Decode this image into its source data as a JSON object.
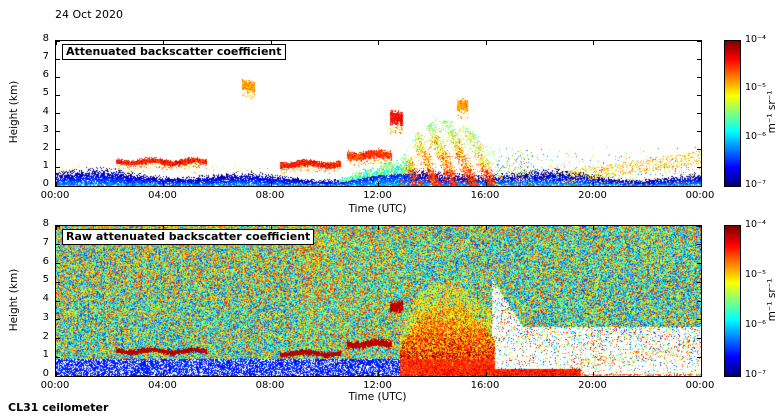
{
  "header": {
    "date": "24 Oct 2020"
  },
  "footer": {
    "instrument": "CL31 ceilometer"
  },
  "panels": [
    {
      "title": "Attenuated backscatter coefficient",
      "xlabel": "Time (UTC)",
      "ylabel": "Height (km)"
    },
    {
      "title": "Raw attenuated backscatter coefficient",
      "xlabel": "Time (UTC)",
      "ylabel": "Height (km)"
    }
  ],
  "chart_data": [
    {
      "type": "heatmap",
      "title": "Attenuated backscatter coefficient",
      "xlabel": "Time (UTC)",
      "ylabel": "Height (km)",
      "x_ticks": [
        "00:00",
        "04:00",
        "08:00",
        "12:00",
        "16:00",
        "20:00",
        "00:00"
      ],
      "y_ticks": [
        "0",
        "1",
        "2",
        "3",
        "4",
        "5",
        "6",
        "7",
        "8"
      ],
      "xlim_hours": [
        0,
        24
      ],
      "ylim_km": [
        0,
        8
      ],
      "grid": false,
      "colorbar": {
        "scale": "log",
        "min": 1e-07,
        "max": 0.0001,
        "colormap": "jet",
        "position": "right",
        "ticks": [
          "10⁻⁴",
          "10⁻⁵",
          "10⁻⁶",
          "10⁻⁷"
        ],
        "unit": "m⁻¹ sr⁻¹"
      },
      "features": {
        "boundary_layer": {
          "time_h": [
            0,
            24
          ],
          "mean_top_km": 0.55,
          "value": 4e-07
        },
        "cloud_streaks": [
          {
            "time_h": [
              2.2,
              5.6
            ],
            "height_km": [
              1.15,
              1.5
            ],
            "value": 5e-05
          },
          {
            "time_h": [
              8.3,
              10.6
            ],
            "height_km": [
              1.0,
              1.4
            ],
            "value": 5e-05
          },
          {
            "time_h": [
              10.8,
              12.5
            ],
            "height_km": [
              1.45,
              1.95
            ],
            "value": 4e-05
          },
          {
            "time_h": [
              6.9,
              7.4
            ],
            "height_km": [
              5.2,
              5.8
            ],
            "value": 2e-05
          },
          {
            "time_h": [
              12.4,
              12.9
            ],
            "height_km": [
              3.3,
              4.1
            ],
            "value": 6e-05
          },
          {
            "time_h": [
              14.9,
              15.3
            ],
            "height_km": [
              4.0,
              4.7
            ],
            "value": 2e-05
          }
        ],
        "precipitation_plume": {
          "profile_time_top_km": [
            [
              12.8,
              1.4
            ],
            [
              13.4,
              2.9
            ],
            [
              14.1,
              3.7
            ],
            [
              15.0,
              3.5
            ],
            [
              15.8,
              2.7
            ],
            [
              16.3,
              1.8
            ]
          ],
          "surface_value": 6e-05
        },
        "post_event_scatter": {
          "time_h": [
            16.3,
            24
          ],
          "height_km": [
            0,
            2.2
          ]
        },
        "evening_layer": {
          "time_h": [
            19,
            24
          ],
          "base_km": 0.5,
          "slope_km_per_h": 0.22
        }
      }
    },
    {
      "type": "heatmap",
      "title": "Raw attenuated backscatter coefficient",
      "xlabel": "Time (UTC)",
      "ylabel": "Height (km)",
      "x_ticks": [
        "00:00",
        "04:00",
        "08:00",
        "12:00",
        "16:00",
        "20:00",
        "00:00"
      ],
      "y_ticks": [
        "0",
        "1",
        "2",
        "3",
        "4",
        "5",
        "6",
        "7",
        "8"
      ],
      "xlim_hours": [
        0,
        24
      ],
      "ylim_km": [
        0,
        8
      ],
      "grid": false,
      "colorbar": {
        "scale": "log",
        "min": 1e-07,
        "max": 0.0001,
        "colormap": "jet",
        "position": "right",
        "ticks": [
          "10⁻⁴",
          "10⁻⁵",
          "10⁻⁶",
          "10⁻⁷"
        ],
        "unit": "m⁻¹ sr⁻¹"
      },
      "features": {
        "noise_floor": {
          "value_range": [
            3e-07,
            1.5e-05
          ]
        },
        "enhanced_band": {
          "time_h": [
            9,
            13.2
          ]
        },
        "upper_left_enhancement": {
          "time_h": [
            0,
            10
          ],
          "height_km": [
            4,
            8
          ]
        },
        "cloud_streaks": [
          {
            "time_h": [
              2.2,
              5.6
            ],
            "height_km": [
              1.15,
              1.5
            ],
            "value": 5e-05
          },
          {
            "time_h": [
              8.3,
              10.6
            ],
            "height_km": [
              1.0,
              1.4
            ],
            "value": 5e-05
          },
          {
            "time_h": [
              10.8,
              12.5
            ],
            "height_km": [
              1.45,
              1.95
            ],
            "value": 4e-05
          },
          {
            "time_h": [
              12.4,
              12.9
            ],
            "height_km": [
              3.3,
              4.1
            ],
            "value": 6e-05
          }
        ],
        "precipitation_plume": {
          "profile_time_top_km": [
            [
              12.8,
              1.4
            ],
            [
              13.4,
              2.9
            ],
            [
              14.1,
              3.7
            ],
            [
              15.0,
              3.5
            ],
            [
              15.8,
              2.7
            ],
            [
              16.3,
              1.8
            ]
          ],
          "surface_value": 6e-05
        },
        "attenuated_region": {
          "time_h": [
            16.2,
            24
          ],
          "top_km": 2.6,
          "wedge_top_km": 5.2
        },
        "surface_rain_band": {
          "time_h": [
            13.8,
            19.5
          ],
          "height_km": [
            0,
            0.35
          ],
          "value": 7e-05
        },
        "low_level_pale_strip": {
          "height_km": [
            0,
            0.9
          ]
        }
      }
    }
  ]
}
